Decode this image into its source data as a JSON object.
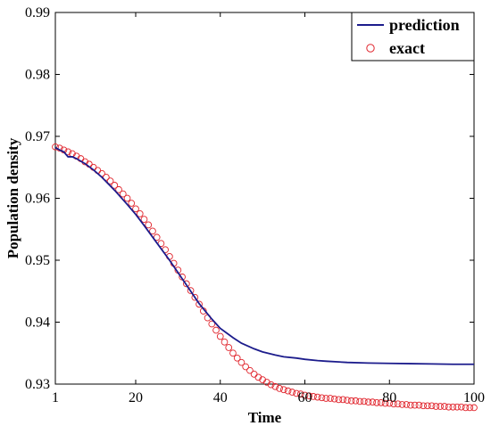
{
  "chart_data": {
    "type": "line",
    "xlabel": "Time",
    "ylabel": "Population density",
    "xlim": [
      1,
      100
    ],
    "ylim": [
      0.93,
      0.99
    ],
    "xticks": [
      1,
      20,
      40,
      60,
      80,
      100
    ],
    "yticks": [
      0.93,
      0.94,
      0.95,
      0.96,
      0.97,
      0.98,
      0.99
    ],
    "ytick_labels": [
      "0.93",
      "0.94",
      "0.95",
      "0.96",
      "0.97",
      "0.98",
      "0.99"
    ],
    "grid": false,
    "legend_position": "top-right",
    "series": [
      {
        "name": "prediction",
        "style": "line",
        "color": "#1c1c8c",
        "x": [
          1,
          2,
          3,
          4,
          5,
          6,
          8,
          10,
          12,
          15,
          18,
          20,
          22,
          25,
          28,
          30,
          33,
          35,
          38,
          40,
          43,
          45,
          48,
          50,
          53,
          55,
          58,
          60,
          63,
          65,
          70,
          75,
          80,
          85,
          90,
          95,
          100
        ],
        "y": [
          0.9682,
          0.9678,
          0.9675,
          0.9667,
          0.9667,
          0.9664,
          0.9656,
          0.9646,
          0.9634,
          0.9613,
          0.959,
          0.9574,
          0.9556,
          0.9528,
          0.95,
          0.948,
          0.945,
          0.943,
          0.9405,
          0.939,
          0.9375,
          0.9366,
          0.9357,
          0.9352,
          0.9347,
          0.9344,
          0.9342,
          0.934,
          0.9338,
          0.9337,
          0.9335,
          0.9334,
          0.93335,
          0.9333,
          0.93325,
          0.9332,
          0.9332
        ]
      },
      {
        "name": "exact",
        "style": "markers",
        "marker": "circle",
        "color": "#e0242c",
        "x_start": 1,
        "x_step": 1,
        "y": [
          0.9683,
          0.9681,
          0.9678,
          0.9675,
          0.9672,
          0.9668,
          0.9664,
          0.9659,
          0.9655,
          0.965,
          0.9645,
          0.964,
          0.9634,
          0.9628,
          0.9621,
          0.9614,
          0.9607,
          0.96,
          0.9592,
          0.9583,
          0.9575,
          0.9566,
          0.9557,
          0.9547,
          0.9537,
          0.9527,
          0.9517,
          0.9506,
          0.9495,
          0.9484,
          0.9473,
          0.9462,
          0.9451,
          0.944,
          0.9429,
          0.9418,
          0.9407,
          0.9397,
          0.9387,
          0.9377,
          0.9368,
          0.9359,
          0.935,
          0.9342,
          0.9335,
          0.9328,
          0.9322,
          0.9316,
          0.9311,
          0.9307,
          0.9303,
          0.9299,
          0.9296,
          0.9293,
          0.9291,
          0.9289,
          0.9287,
          0.9285,
          0.9284,
          0.9282,
          0.9281,
          0.928,
          0.9279,
          0.9278,
          0.9277,
          0.9277,
          0.9276,
          0.9275,
          0.9275,
          0.9274,
          0.9273,
          0.9273,
          0.9272,
          0.9272,
          0.9271,
          0.9271,
          0.927,
          0.927,
          0.9269,
          0.9269,
          0.9268,
          0.9268,
          0.9267,
          0.9267,
          0.9266,
          0.9266,
          0.9266,
          0.9265,
          0.9265,
          0.9265,
          0.9264,
          0.9264,
          0.9264,
          0.9263,
          0.9263,
          0.9263,
          0.9263,
          0.9262,
          0.9262,
          0.9262
        ]
      }
    ]
  }
}
